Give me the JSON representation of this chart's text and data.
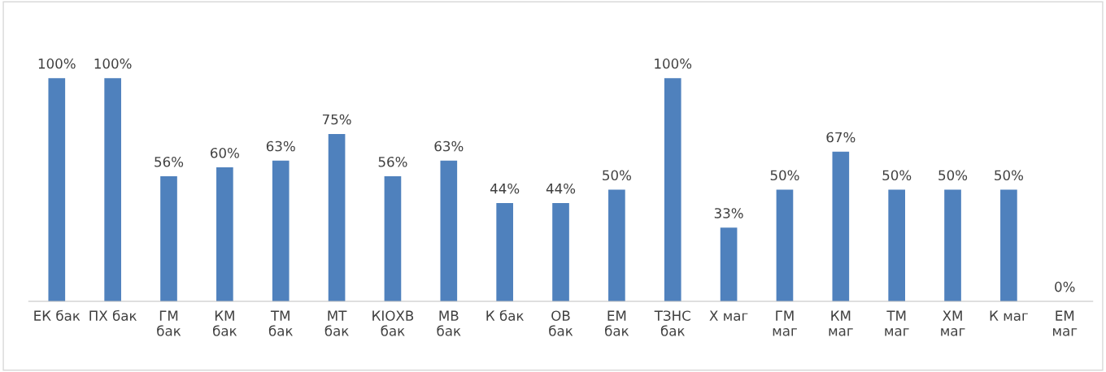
{
  "chart_data": {
    "type": "bar",
    "categories": [
      "ЕК бак",
      "ПХ бак",
      "ГМ\nбак",
      "КМ\nбак",
      "ТМ\nбак",
      "МТ\nбак",
      "КІОХВ\nбак",
      "МВ\nбак",
      "К бак",
      "ОВ\nбак",
      "ЕМ\nбак",
      "ТЗНС\nбак",
      "Х маг",
      "ГМ\nмаг",
      "КМ\nмаг",
      "ТМ\nмаг",
      "ХМ\nмаг",
      "К маг",
      "ЕМ\nмаг"
    ],
    "values": [
      100,
      100,
      56,
      60,
      63,
      75,
      56,
      63,
      44,
      44,
      50,
      100,
      33,
      50,
      67,
      50,
      50,
      50,
      0
    ],
    "value_labels": [
      "100%",
      "100%",
      "56%",
      "60%",
      "63%",
      "75%",
      "56%",
      "63%",
      "44%",
      "44%",
      "50%",
      "100%",
      "33%",
      "50%",
      "67%",
      "50%",
      "50%",
      "50%",
      "0%"
    ],
    "color": "#4f81bd",
    "grid": false,
    "legend": false
  }
}
